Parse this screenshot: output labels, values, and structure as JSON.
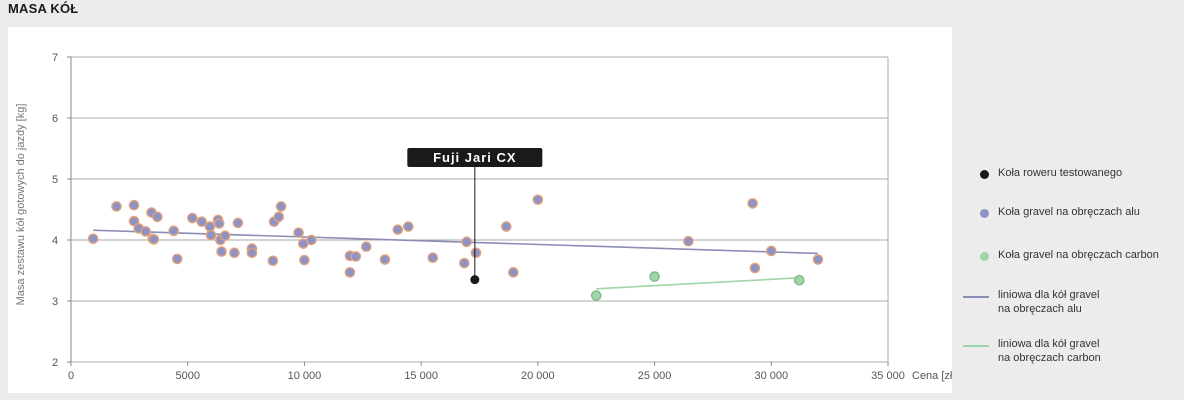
{
  "page_title": "MASA KÓŁ",
  "chart_data": {
    "type": "scatter",
    "title": "",
    "xlabel": "Cena [zł]",
    "ylabel": "Masa zestawu kół gotowych do jazdy [kg]",
    "xlim": [
      0,
      35000
    ],
    "ylim": [
      2,
      7
    ],
    "x_ticks": [
      0,
      5000,
      10000,
      15000,
      20000,
      25000,
      30000,
      35000
    ],
    "x_tick_labels": [
      "0",
      "5000",
      "10 000",
      "15 000",
      "20 000",
      "25 000",
      "30 000",
      "35 000"
    ],
    "y_ticks": [
      2,
      3,
      4,
      5,
      6,
      7
    ],
    "y_tick_labels": [
      "2",
      "3",
      "4",
      "5",
      "6",
      "7"
    ],
    "grid": true,
    "legend_position": "right",
    "annotation": {
      "text": "Fuji Jari CX",
      "x": 17300,
      "y": 3.35
    },
    "series": [
      {
        "name": "Koła roweru testowanego",
        "kind": "scatter",
        "color": "#1a1a1a",
        "points": [
          [
            17300,
            3.35
          ]
        ]
      },
      {
        "name": "Koła gravel na obręczach alu",
        "kind": "scatter",
        "color": "#8e92c4",
        "edge_color": "#e0a27a",
        "points": [
          [
            950,
            4.02
          ],
          [
            1950,
            4.55
          ],
          [
            2700,
            4.57
          ],
          [
            2700,
            4.31
          ],
          [
            2900,
            4.19
          ],
          [
            3200,
            4.14
          ],
          [
            3450,
            4.45
          ],
          [
            3500,
            4.02
          ],
          [
            3550,
            4.01
          ],
          [
            3700,
            4.38
          ],
          [
            4400,
            4.15
          ],
          [
            4550,
            3.69
          ],
          [
            5200,
            4.36
          ],
          [
            5600,
            4.3
          ],
          [
            5950,
            4.22
          ],
          [
            6000,
            4.08
          ],
          [
            6300,
            4.33
          ],
          [
            6350,
            4.27
          ],
          [
            6400,
            4.0
          ],
          [
            6450,
            3.81
          ],
          [
            6600,
            4.07
          ],
          [
            7000,
            3.79
          ],
          [
            7150,
            4.28
          ],
          [
            7750,
            3.86
          ],
          [
            7750,
            3.79
          ],
          [
            8650,
            3.66
          ],
          [
            8700,
            4.3
          ],
          [
            8900,
            4.38
          ],
          [
            9000,
            4.55
          ],
          [
            9750,
            4.12
          ],
          [
            9950,
            3.94
          ],
          [
            10000,
            3.67
          ],
          [
            10300,
            4.0
          ],
          [
            11950,
            3.74
          ],
          [
            11950,
            3.47
          ],
          [
            12200,
            3.73
          ],
          [
            12650,
            3.89
          ],
          [
            13450,
            3.68
          ],
          [
            14000,
            4.17
          ],
          [
            14450,
            4.22
          ],
          [
            15500,
            3.71
          ],
          [
            16850,
            3.62
          ],
          [
            16950,
            3.97
          ],
          [
            17350,
            3.79
          ],
          [
            18650,
            4.22
          ],
          [
            18950,
            3.47
          ],
          [
            20000,
            4.66
          ],
          [
            26450,
            3.98
          ],
          [
            29200,
            4.6
          ],
          [
            29300,
            3.54
          ],
          [
            30000,
            3.82
          ],
          [
            32000,
            3.68
          ]
        ]
      },
      {
        "name": "Koła gravel na obręczach carbon",
        "kind": "scatter",
        "color": "#9fd6a8",
        "edge_color": "#7fba88",
        "points": [
          [
            22500,
            3.09
          ],
          [
            25000,
            3.4
          ],
          [
            31200,
            3.34
          ]
        ]
      },
      {
        "name": "liniowa dla kół gravel na obręczach alu",
        "kind": "trendline",
        "color": "#8a8db5",
        "points": [
          [
            950,
            4.16
          ],
          [
            32000,
            3.78
          ]
        ]
      },
      {
        "name": "liniowa dla kół gravel na obręczach carbon",
        "kind": "trendline",
        "color": "#9fd6a8",
        "points": [
          [
            22500,
            3.2
          ],
          [
            31200,
            3.38
          ]
        ]
      }
    ]
  },
  "legend": [
    {
      "lines": [
        "Koła roweru testowanego"
      ],
      "marker": "dot",
      "color": "#1a1a1a"
    },
    {
      "lines": [
        "Koła gravel na obręczach alu"
      ],
      "marker": "dot",
      "color": "#8e92c4"
    },
    {
      "lines": [
        "Koła gravel na obręczach carbon"
      ],
      "marker": "dot",
      "color": "#9fd6a8"
    },
    {
      "lines": [
        "liniowa dla kół gravel",
        "na obręczach alu"
      ],
      "marker": "line",
      "color": "#8a8db5"
    },
    {
      "lines": [
        "liniowa dla kół gravel",
        "na obręczach carbon"
      ],
      "marker": "line",
      "color": "#9fd6a8"
    }
  ]
}
